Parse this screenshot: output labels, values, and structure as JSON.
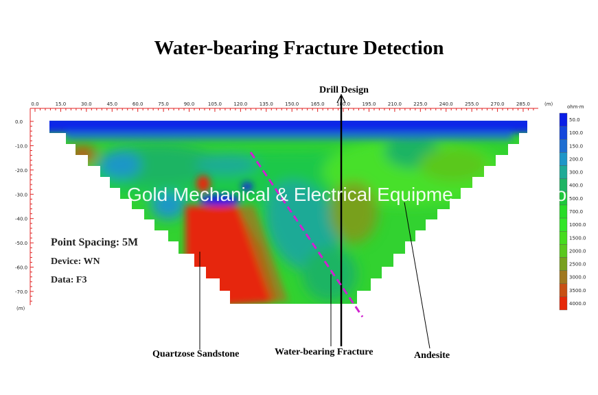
{
  "title": "Water-bearing Fracture Detection",
  "watermark": "Gold Mechanical & Electrical Equipme",
  "watermark_tail": "o",
  "info": {
    "point_spacing": "Point Spacing: 5M",
    "device": "Device: WN",
    "data": "Data: F3"
  },
  "annotations": {
    "drill_design": "Drill Design",
    "quartzose_sandstone": "Quartzose Sandstone",
    "water_bearing_fracture": "Water-bearing Fracture",
    "andesite": "Andesite"
  },
  "colors": {
    "low": "#1030e0",
    "green": "#30d030",
    "high": "#e02808",
    "fracture_line": "#d020d0",
    "axis": "#e02020"
  },
  "chart_data": {
    "type": "heatmap",
    "title": "Water-bearing Fracture Detection",
    "x_unit": "(m)",
    "y_unit": "(m)",
    "x_ticks": [
      "0.0",
      "15.0",
      "30.0",
      "45.0",
      "60.0",
      "75.0",
      "90.0",
      "105.0",
      "120.0",
      "135.0",
      "150.0",
      "165.0",
      "180.0",
      "195.0",
      "210.0",
      "225.0",
      "240.0",
      "255.0",
      "270.0",
      "285.0"
    ],
    "y_ticks": [
      "0.0",
      "-10.0",
      "-20.0",
      "-30.0",
      "-40.0",
      "-50.0",
      "-60.0",
      "-70.0"
    ],
    "xlim": [
      0,
      300
    ],
    "ylim": [
      -75,
      0
    ],
    "legend": {
      "unit": "ohm·m",
      "levels": [
        "50.0",
        "100.0",
        "150.0",
        "200.0",
        "300.0",
        "400.0",
        "500.0",
        "700.0",
        "1000.0",
        "1500.0",
        "2000.0",
        "2500.0",
        "3000.0",
        "3500.0",
        "4000.0"
      ],
      "colors": [
        "#0a1ee6",
        "#1446dc",
        "#1e6ed2",
        "#1e96c8",
        "#1eaa96",
        "#1eb464",
        "#1ec83c",
        "#28dc28",
        "#32e628",
        "#46dc1e",
        "#5ac81e",
        "#78a01e",
        "#a0781e",
        "#c85014",
        "#e62808"
      ]
    },
    "features": [
      {
        "name": "Quartzose Sandstone",
        "x": [
          85,
          140
        ],
        "depth": [
          -25,
          -75
        ]
      },
      {
        "name": "Water-bearing Fracture",
        "x": [
          130,
          195
        ],
        "depth": [
          -15,
          -80
        ]
      },
      {
        "name": "Andesite",
        "x": [
          180,
          240
        ],
        "depth": [
          -15,
          -60
        ]
      }
    ],
    "drill_design_x": 180
  }
}
